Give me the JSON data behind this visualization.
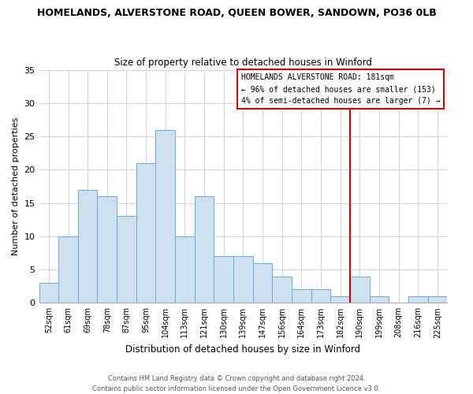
{
  "title": "HOMELANDS, ALVERSTONE ROAD, QUEEN BOWER, SANDOWN, PO36 0LB",
  "subtitle": "Size of property relative to detached houses in Winford",
  "xlabel": "Distribution of detached houses by size in Winford",
  "ylabel": "Number of detached properties",
  "bin_labels": [
    "52sqm",
    "61sqm",
    "69sqm",
    "78sqm",
    "87sqm",
    "95sqm",
    "104sqm",
    "113sqm",
    "121sqm",
    "130sqm",
    "139sqm",
    "147sqm",
    "156sqm",
    "164sqm",
    "173sqm",
    "182sqm",
    "190sqm",
    "199sqm",
    "208sqm",
    "216sqm",
    "225sqm"
  ],
  "bar_values": [
    3,
    10,
    17,
    16,
    13,
    21,
    26,
    10,
    16,
    7,
    7,
    6,
    4,
    2,
    2,
    1,
    4,
    1,
    0,
    1,
    1
  ],
  "bar_color": "#cfe0f0",
  "bar_edge_color": "#6aaad4",
  "vline_x": 15.5,
  "vline_color": "#cc0000",
  "ylim": [
    0,
    35
  ],
  "yticks": [
    0,
    5,
    10,
    15,
    20,
    25,
    30,
    35
  ],
  "annotation_title": "HOMELANDS ALVERSTONE ROAD: 181sqm",
  "annotation_line1": "← 96% of detached houses are smaller (153)",
  "annotation_line2": "4% of semi-detached houses are larger (7) →",
  "footer_line1": "Contains HM Land Registry data © Crown copyright and database right 2024.",
  "footer_line2": "Contains public sector information licensed under the Open Government Licence v3.0.",
  "background_color": "#ffffff",
  "grid_color": "#cccccc"
}
